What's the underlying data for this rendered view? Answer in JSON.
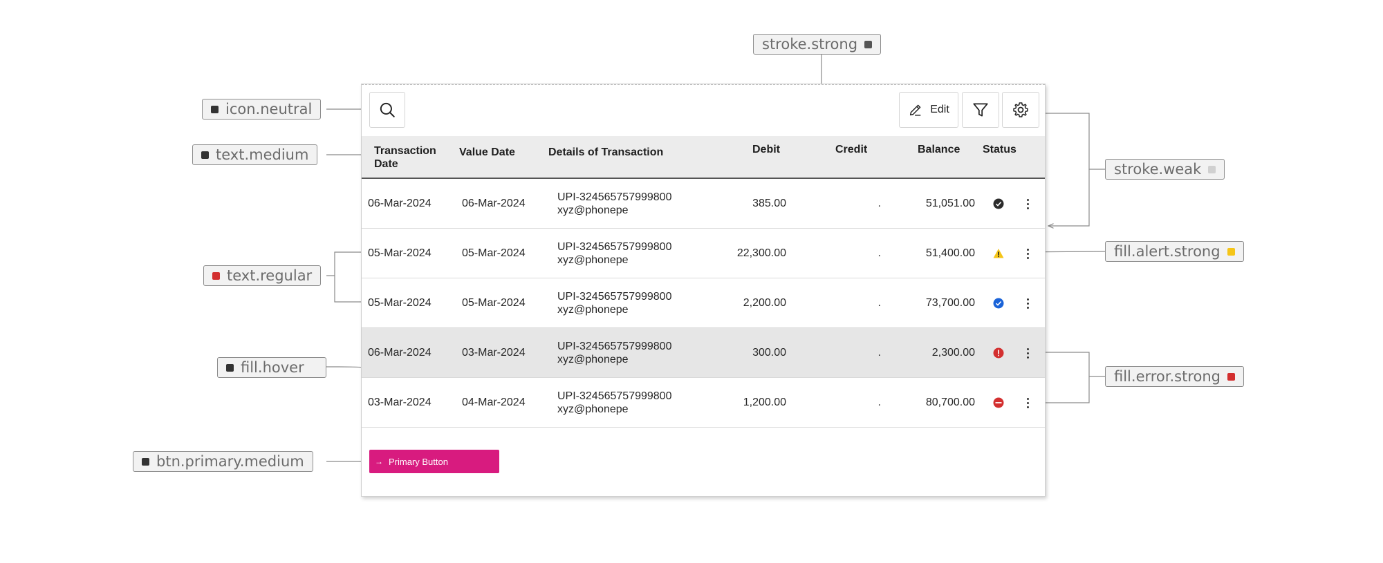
{
  "annotations": {
    "icon_neutral": {
      "label": "icon.neutral",
      "color": "#333333"
    },
    "text_medium": {
      "label": "text.medium",
      "color": "#333333"
    },
    "text_regular": {
      "label": "text.regular",
      "color": "#d32f2f"
    },
    "fill_hover": {
      "label": "fill.hover",
      "color": "#333333"
    },
    "btn_primary_medium": {
      "label": "btn.primary.medium",
      "color": "#333333"
    },
    "stroke_strong": {
      "label": "stroke.strong",
      "color": "#555555"
    },
    "stroke_weak": {
      "label": "stroke.weak",
      "color": "#d0d0d0"
    },
    "fill_alert_strong": {
      "label": "fill.alert.strong",
      "color": "#f5c518"
    },
    "fill_error_strong": {
      "label": "fill.error.strong",
      "color": "#d32f2f"
    }
  },
  "toolbar": {
    "search_icon": "search-icon",
    "edit_label": "Edit",
    "edit_icon": "pencil-icon",
    "filter_icon": "filter-icon",
    "settings_icon": "gear-icon"
  },
  "table": {
    "headers": {
      "transaction_date": "Transaction Date",
      "value_date": "Value Date",
      "details": "Details of Transaction",
      "debit": "Debit",
      "credit": "Credit",
      "balance": "Balance",
      "status": "Status"
    },
    "rows": [
      {
        "txn_date": "06-Mar-2024",
        "value_date": "06-Mar-2024",
        "ref": "UPI-324565757999800",
        "payee": "xyz@phonepe",
        "debit": "385.00",
        "credit": ".",
        "balance": "51,051.00",
        "status": "success",
        "status_color": "#2b2b2b"
      },
      {
        "txn_date": "05-Mar-2024",
        "value_date": "05-Mar-2024",
        "ref": "UPI-324565757999800",
        "payee": "xyz@phonepe",
        "debit": "22,300.00",
        "credit": ".",
        "balance": "51,400.00",
        "status": "warning",
        "status_color": "#f5c518"
      },
      {
        "txn_date": "05-Mar-2024",
        "value_date": "05-Mar-2024",
        "ref": "UPI-324565757999800",
        "payee": "xyz@phonepe",
        "debit": "2,200.00",
        "credit": ".",
        "balance": "73,700.00",
        "status": "verified",
        "status_color": "#1a63d8"
      },
      {
        "txn_date": "06-Mar-2024",
        "value_date": "03-Mar-2024",
        "ref": "UPI-324565757999800",
        "payee": "xyz@phonepe",
        "debit": "300.00",
        "credit": ".",
        "balance": "2,300.00",
        "status": "error",
        "status_color": "#d32f2f",
        "hover": true
      },
      {
        "txn_date": "03-Mar-2024",
        "value_date": "04-Mar-2024",
        "ref": "UPI-324565757999800",
        "payee": "xyz@phonepe",
        "debit": "1,200.00",
        "credit": ".",
        "balance": "80,700.00",
        "status": "blocked",
        "status_color": "#d32f2f"
      }
    ]
  },
  "primary_button": {
    "label": "Primary Button",
    "icon": "arrow-right-icon",
    "color": "#d81b7f"
  },
  "colors": {
    "hover_fill": "#e6e6e6",
    "header_fill": "#ececec"
  }
}
